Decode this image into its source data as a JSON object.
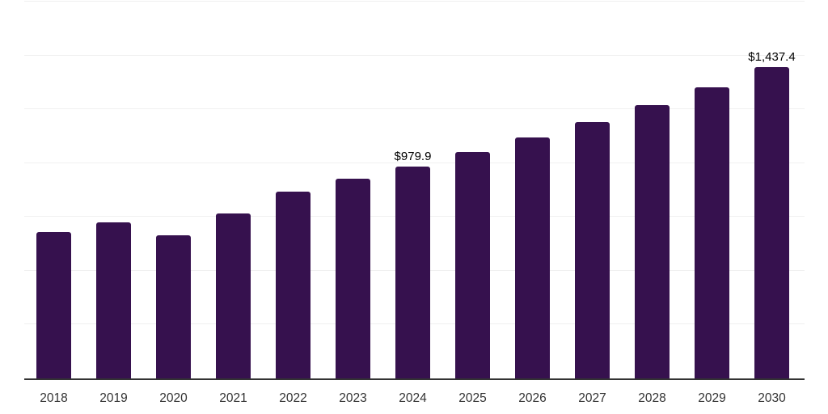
{
  "chart_data": {
    "type": "bar",
    "title": "",
    "xlabel": "",
    "ylabel": "",
    "categories": [
      "2018",
      "2019",
      "2020",
      "2021",
      "2022",
      "2023",
      "2024",
      "2025",
      "2026",
      "2027",
      "2028",
      "2029",
      "2030"
    ],
    "values": [
      675,
      722,
      660,
      762,
      862,
      921,
      979.9,
      1045,
      1112,
      1183,
      1261,
      1345,
      1437.4
    ],
    "annotations": [
      {
        "category": "2024",
        "text": "$979.9"
      },
      {
        "category": "2030",
        "text": "$1,437.4"
      }
    ],
    "ylim": [
      0,
      1740
    ],
    "gridline_count": 7,
    "grid": "horizontal",
    "legend_position": "none",
    "colors": {
      "bar": "#36114E",
      "axis": "#333333",
      "gridline": "#f0f0f0",
      "tick_label": "#333333",
      "data_label": "#000000",
      "background": "#ffffff"
    }
  }
}
